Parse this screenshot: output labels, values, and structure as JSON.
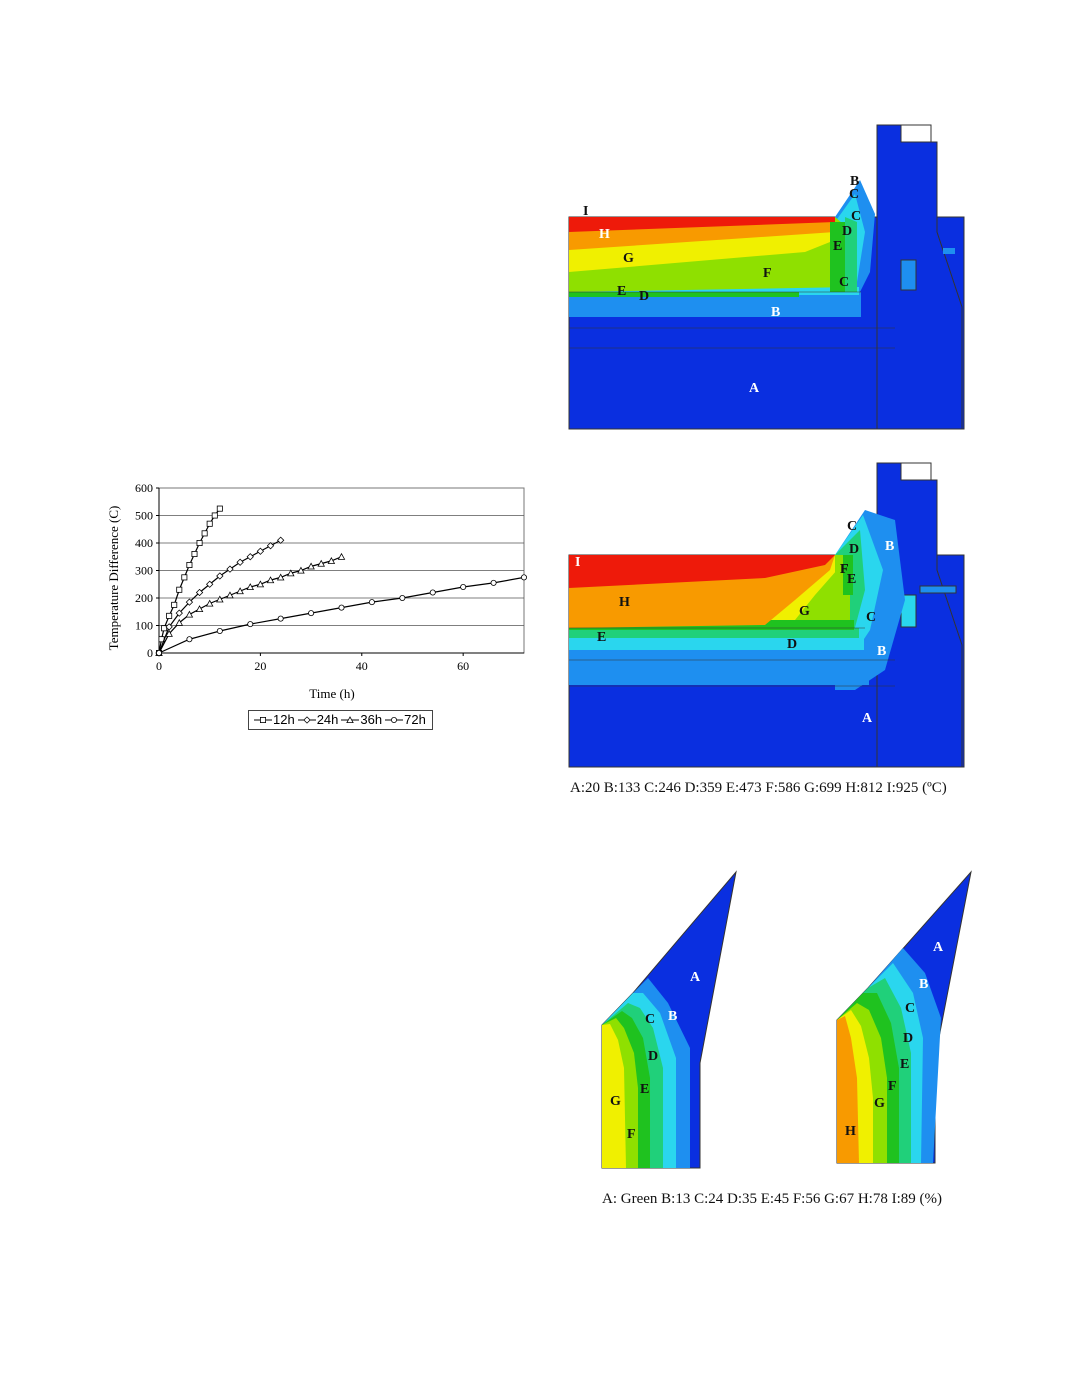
{
  "chart_data": {
    "type": "line",
    "xlabel": "Time (h)",
    "ylabel": "Temperature Difference (C)",
    "xlim": [
      0,
      72
    ],
    "ylim": [
      0,
      600
    ],
    "xticks": [
      "0",
      "20",
      "40",
      "60"
    ],
    "yticks": [
      "0",
      "100",
      "200",
      "300",
      "400",
      "500",
      "600"
    ],
    "grid": "horizontal",
    "legend_position": "bottom",
    "series": [
      {
        "name": "12h",
        "marker": "square",
        "x": [
          0,
          0.5,
          1,
          2,
          3,
          4,
          5,
          6,
          7,
          8,
          9,
          10,
          11,
          12
        ],
        "y": [
          0,
          50,
          90,
          135,
          175,
          230,
          275,
          320,
          360,
          400,
          435,
          470,
          500,
          525
        ]
      },
      {
        "name": "24h",
        "marker": "diamond",
        "x": [
          0,
          2,
          4,
          6,
          8,
          10,
          12,
          14,
          16,
          18,
          20,
          22,
          24
        ],
        "y": [
          0,
          95,
          145,
          185,
          220,
          250,
          280,
          305,
          330,
          350,
          370,
          390,
          410
        ]
      },
      {
        "name": "36h",
        "marker": "triangle",
        "x": [
          0,
          2,
          4,
          6,
          8,
          10,
          12,
          14,
          16,
          18,
          20,
          22,
          24,
          26,
          28,
          30,
          32,
          34,
          36
        ],
        "y": [
          0,
          70,
          110,
          140,
          160,
          180,
          195,
          210,
          225,
          240,
          250,
          265,
          275,
          290,
          300,
          315,
          325,
          335,
          350
        ]
      },
      {
        "name": "72h",
        "marker": "circle",
        "x": [
          0,
          6,
          12,
          18,
          24,
          30,
          36,
          42,
          48,
          54,
          60,
          66,
          72
        ],
        "y": [
          0,
          50,
          80,
          105,
          125,
          145,
          165,
          185,
          200,
          220,
          240,
          255,
          275
        ]
      }
    ]
  },
  "figures": {
    "temp_map_1_labels": [
      "I",
      "H",
      "G",
      "F",
      "E",
      "D",
      "C",
      "B",
      "A",
      "B",
      "C",
      "D",
      "E",
      "C"
    ],
    "temp_map_2_labels": [
      "I",
      "H",
      "G",
      "F",
      "E",
      "D",
      "C",
      "B",
      "A",
      "C",
      "D",
      "B",
      "E",
      "F"
    ],
    "moisture_map_1_labels": [
      "A",
      "B",
      "C",
      "D",
      "E",
      "F",
      "G"
    ],
    "moisture_map_2_labels": [
      "A",
      "B",
      "C",
      "D",
      "E",
      "F",
      "G",
      "H"
    ]
  },
  "captions": {
    "temperature": "A:20 B:133 C:246 D:359 E:473 F:586 G:699 H:812 I:925 (ºC)",
    "moisture": "A: Green B:13 C:24 D:35 E:45 F:56 G:67 H:78 I:89 (%)"
  },
  "colors": {
    "A": "#0a2fe0",
    "B": "#1e8ff0",
    "C": "#2ad6ee",
    "D": "#20d07a",
    "E": "#1fc21f",
    "F": "#8fe000",
    "G": "#f0f000",
    "H": "#f89a00",
    "I": "#ee1a0a"
  }
}
